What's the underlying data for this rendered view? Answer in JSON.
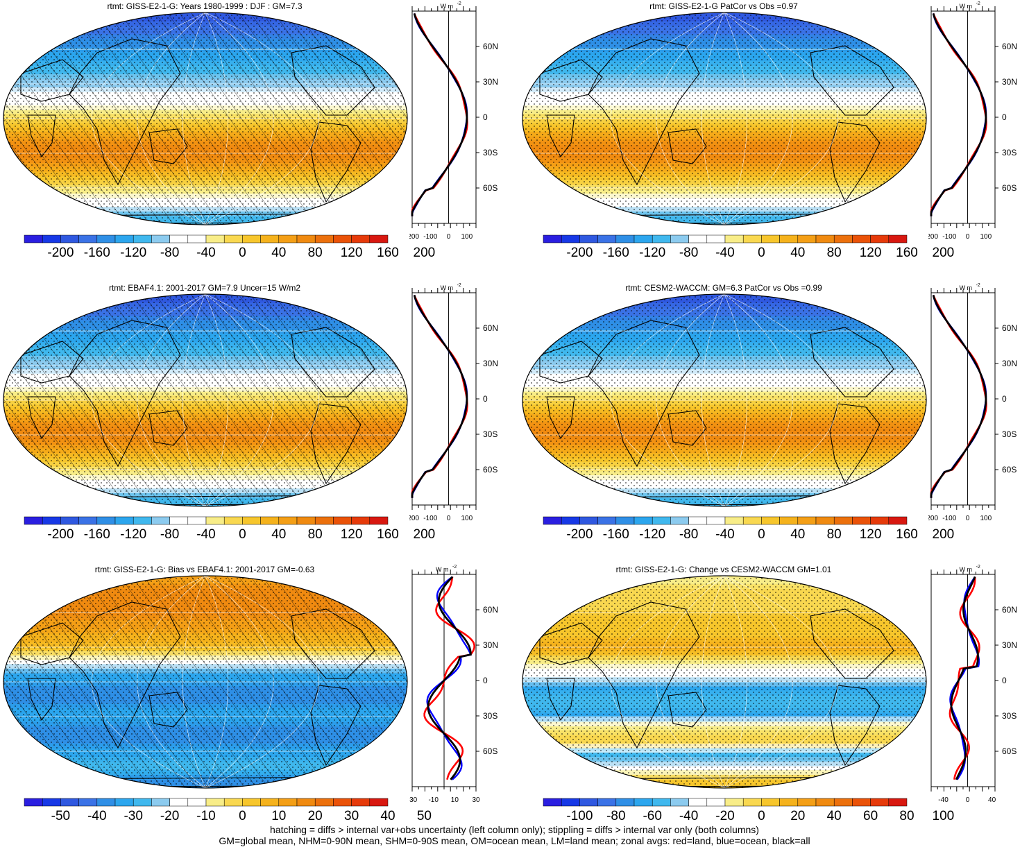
{
  "panels": [
    {
      "title": "rtmt: GISS-E2-1-G: Years 1980-1999 : DJF : GM=7.3",
      "hatching": true,
      "palette": "main",
      "colorbar_labels": [
        "-200",
        "-160",
        "-120",
        "-80",
        "-40",
        "0",
        "40",
        "80",
        "120",
        "160",
        "200"
      ],
      "profile_ticks": [
        "-200",
        "-100",
        "0",
        "100"
      ],
      "profile_range": [
        -200,
        150
      ]
    },
    {
      "title": "rtmt: GISS-E2-1-G PatCor vs Obs =0.97",
      "hatching": false,
      "palette": "main",
      "colorbar_labels": [
        "-200",
        "-160",
        "-120",
        "-80",
        "-40",
        "0",
        "40",
        "80",
        "120",
        "160",
        "200"
      ],
      "profile_ticks": [
        "-200",
        "-100",
        "0",
        "100"
      ],
      "profile_range": [
        -200,
        150
      ]
    },
    {
      "title": "rtmt: EBAF4.1: 2001-2017 GM=7.9 Uncer=15 W/m2",
      "hatching": true,
      "palette": "main",
      "colorbar_labels": [
        "-200",
        "-160",
        "-120",
        "-80",
        "-40",
        "0",
        "40",
        "80",
        "120",
        "160",
        "200"
      ],
      "profile_ticks": [
        "-200",
        "-100",
        "0",
        "100"
      ],
      "profile_range": [
        -200,
        150
      ]
    },
    {
      "title": "rtmt: CESM2-WACCM: GM=6.3 PatCor vs Obs =0.99",
      "hatching": false,
      "palette": "main",
      "colorbar_labels": [
        "-200",
        "-160",
        "-120",
        "-80",
        "-40",
        "0",
        "40",
        "80",
        "120",
        "160",
        "200"
      ],
      "profile_ticks": [
        "-200",
        "-100",
        "0",
        "100"
      ],
      "profile_range": [
        -200,
        150
      ]
    },
    {
      "title": "rtmt: GISS-E2-1-G: Bias vs EBAF4.1: 2001-2017 GM=-0.63",
      "hatching": true,
      "palette": "bias",
      "colorbar_labels": [
        "-50",
        "-40",
        "-30",
        "-20",
        "-10",
        "0",
        "10",
        "20",
        "30",
        "40",
        "50"
      ],
      "profile_ticks": [
        "-30",
        "-10",
        "10",
        "30"
      ],
      "profile_range": [
        -30,
        30
      ]
    },
    {
      "title": "rtmt: GISS-E2-1-G: Change vs CESM2-WACCM GM=1.01",
      "hatching": false,
      "palette": "change",
      "colorbar_labels": [
        "-100",
        "-80",
        "-60",
        "-40",
        "-20",
        "0",
        "20",
        "40",
        "60",
        "80",
        "100"
      ],
      "profile_ticks": [
        "-40",
        "0",
        "40"
      ],
      "profile_range": [
        -60,
        45
      ]
    }
  ],
  "lat_labels": [
    "60N",
    "30N",
    "0",
    "30S",
    "60S"
  ],
  "profile_units": "W m",
  "profile_units_exp": "-2",
  "colors": {
    "palette": [
      "#2a1ee0",
      "#1738e6",
      "#2f58e0",
      "#3a72e6",
      "#2f8fe6",
      "#2ca6ee",
      "#40b8ee",
      "#8ccbef",
      "#ffffff",
      "#ffffff",
      "#f8ed88",
      "#f9d850",
      "#f7c62c",
      "#f5b21c",
      "#f49f16",
      "#f08a10",
      "#ec700c",
      "#ea5208",
      "#e63a0a",
      "#d81810"
    ],
    "land_line": "#ff0000",
    "ocean_line": "#0000ff",
    "all_line": "#000000"
  },
  "footer": [
    "hatching = diffs > internal var+obs uncertainty (left column only); stippling = diffs > internal var only (both columns)",
    "GM=global mean, NHM=0-90N mean, SHM=0-90S mean, OM=ocean mean, LM=land mean; zonal avgs: red=land, blue=ocean, black=all"
  ]
}
